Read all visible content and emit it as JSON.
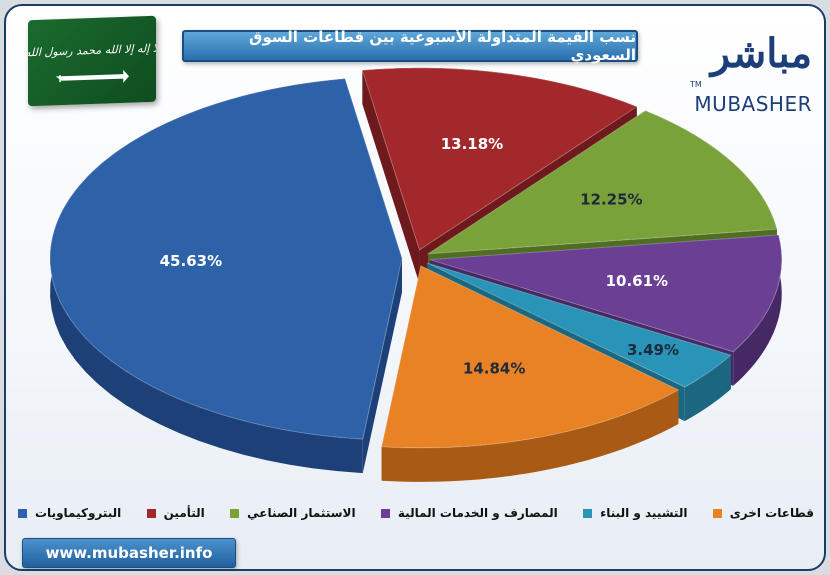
{
  "header": {
    "title": "نسب القيمة المتداولة الأسبوعية بين قطاعات السوق السعودي"
  },
  "flag": {
    "inscription": "لا إله إلا الله محمد رسول الله",
    "colors": {
      "field": "#1b6b2f",
      "emblem": "#ffffff"
    }
  },
  "logo": {
    "arabic": "مباشر",
    "english": "MUBASHER",
    "tm": "TM"
  },
  "footer": {
    "website": "www.mubasher.info"
  },
  "chart_data": {
    "type": "pie",
    "title": "نسب القيمة المتداولة الأسبوعية بين قطاعات السوق السعودي",
    "categories": [
      "البتروكيماويات",
      "التأمين",
      "الاستثمار الصناعي",
      "المصارف و الخدمات المالية",
      "التشييد و البناء",
      "قطاعات اخرى"
    ],
    "values": [
      45.63,
      13.18,
      12.25,
      10.61,
      3.49,
      14.84
    ],
    "data_labels": [
      "45.63%",
      "13.18%",
      "12.25%",
      "10.61%",
      "3.49%",
      "14.84%"
    ],
    "colors": [
      "#2e62a8",
      "#a3282c",
      "#7aa23a",
      "#6a3f94",
      "#2a94b8",
      "#e98224"
    ],
    "side_colors": [
      "#1c4077",
      "#6e1a1d",
      "#506d24",
      "#452864",
      "#1b6780",
      "#a95b15"
    ],
    "style": "exploded 3D pie",
    "legend_position": "bottom"
  }
}
